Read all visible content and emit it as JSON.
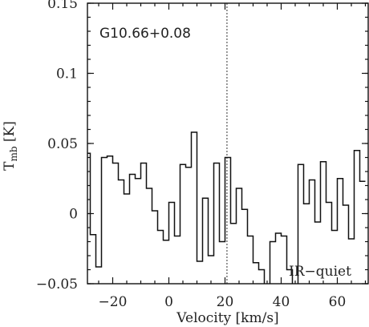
{
  "chart_data": {
    "type": "line",
    "step": true,
    "source_label": "G10.66+0.08",
    "annotation": "IR−quiet",
    "xlabel": "Velocity [km/s]",
    "ylabel_main": "T",
    "ylabel_sub": "mb",
    "ylabel_unit": "[K]",
    "xlim": [
      -29,
      71
    ],
    "ylim": [
      -0.05,
      0.15
    ],
    "x_ticks": [
      -20,
      0,
      20,
      40,
      60
    ],
    "x_tick_labels": [
      "−20",
      "0",
      "20",
      "40",
      "60"
    ],
    "y_ticks": [
      -0.05,
      0,
      0.05,
      0.1,
      0.15
    ],
    "y_tick_labels": [
      "−0.05",
      "0",
      "0.05",
      "0.1",
      "0.15"
    ],
    "marker_velocity": 20.7,
    "channel_width": 2.0,
    "series": [
      {
        "x": [
          -29,
          -27,
          -25,
          -23,
          -21,
          -19,
          -17,
          -15,
          -13,
          -11,
          -9,
          -7,
          -5,
          -3,
          -1,
          1,
          3,
          5,
          7,
          9,
          11,
          13,
          15,
          17,
          19,
          21,
          23,
          25,
          27,
          29,
          31,
          33,
          35,
          37,
          39,
          41,
          43,
          45,
          47,
          49,
          51,
          53,
          55,
          57,
          59,
          61,
          63,
          65,
          67,
          69
        ],
        "values": [
          0.043,
          -0.015,
          -0.038,
          0.04,
          0.041,
          0.036,
          0.024,
          0.014,
          0.028,
          0.025,
          0.036,
          0.018,
          0.002,
          -0.012,
          -0.019,
          0.008,
          -0.016,
          0.035,
          0.033,
          0.058,
          -0.034,
          0.011,
          -0.03,
          0.036,
          -0.02,
          0.04,
          -0.007,
          0.018,
          0.003,
          -0.016,
          -0.035,
          -0.04,
          -0.06,
          -0.02,
          -0.014,
          -0.016,
          -0.04,
          -0.07,
          0.035,
          0.007,
          0.024,
          -0.006,
          0.037,
          0.008,
          -0.012,
          0.025,
          0.006,
          -0.018,
          0.045,
          0.023
        ]
      }
    ]
  }
}
